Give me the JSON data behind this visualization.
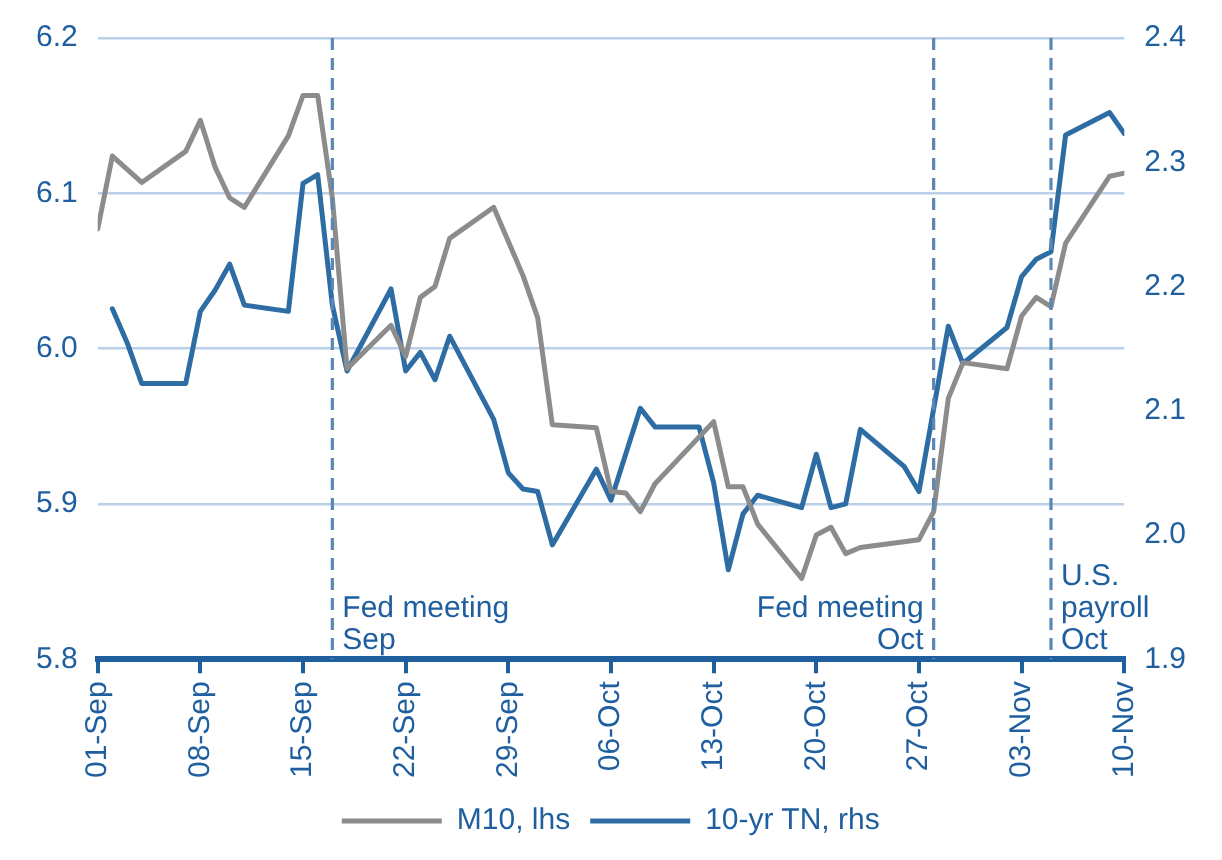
{
  "chart_data": {
    "type": "line",
    "xlim": [
      "--09-01",
      "--11-10"
    ],
    "xticks": [
      {
        "value": "--09-01",
        "label": "01-Sep"
      },
      {
        "value": "--09-08",
        "label": "08-Sep"
      },
      {
        "value": "--09-15",
        "label": "15-Sep"
      },
      {
        "value": "--09-22",
        "label": "22-Sep"
      },
      {
        "value": "--09-29",
        "label": "29-Sep"
      },
      {
        "value": "--10-06",
        "label": "06-Oct"
      },
      {
        "value": "--10-13",
        "label": "13-Oct"
      },
      {
        "value": "--10-20",
        "label": "20-Oct"
      },
      {
        "value": "--10-27",
        "label": "27-Oct"
      },
      {
        "value": "--11-03",
        "label": "03-Nov"
      },
      {
        "value": "--11-10",
        "label": "10-Nov"
      }
    ],
    "ylim": [
      5.8,
      6.2
    ],
    "yticks": [
      5.8,
      5.9,
      {
        "value": 6,
        "label": "6.0"
      },
      6.1,
      6.2
    ],
    "y2lim": [
      1.9,
      2.4
    ],
    "y2ticks": [
      1.9,
      {
        "value": 2,
        "label": "2.0"
      },
      2.1,
      2.2,
      2.3,
      2.4
    ],
    "series": [
      {
        "name": "M10, lhs",
        "color": "#8c8c8c",
        "x": [
          "--09-01",
          "--09-02",
          "--09-04",
          "--09-07",
          "--09-08",
          "--09-09",
          "--09-10",
          "--09-11",
          "--09-14",
          "--09-15",
          "--09-16",
          "--09-17",
          "--09-18",
          "--09-21",
          "--09-22",
          "--09-23",
          "--09-24",
          "--09-25",
          "--09-28",
          "--09-30",
          "--10-01",
          "--10-02",
          "--10-05",
          "--10-06",
          "--10-07",
          "--10-08",
          "--10-09",
          "--10-13",
          "--10-14",
          "--10-15",
          "--10-16",
          "--10-19",
          "--10-20",
          "--10-21",
          "--10-22",
          "--10-23",
          "--10-27",
          "--10-28",
          "--10-29",
          "--10-30",
          "--11-02",
          "--11-03",
          "--11-04",
          "--11-05",
          "--11-06",
          "--11-09",
          "--11-10"
        ],
        "values": [
          6.077,
          6.124,
          6.107,
          6.127,
          6.147,
          6.117,
          6.097,
          6.091,
          6.137,
          6.163,
          6.163,
          6.097,
          5.987,
          6.015,
          5.995,
          6.033,
          6.04,
          6.071,
          6.091,
          6.047,
          6.02,
          5.951,
          5.949,
          5.908,
          5.907,
          5.895,
          5.913,
          5.953,
          5.911,
          5.911,
          5.887,
          5.852,
          5.88,
          5.885,
          5.868,
          5.872,
          5.877,
          5.895,
          5.968,
          5.991,
          5.987,
          6.021,
          6.033,
          6.027,
          6.068,
          6.111,
          6.113
        ]
      },
      {
        "name": "10-yr TN, rhs",
        "color": "#2e6da4",
        "axis": "y2",
        "x": [
          "--09-02",
          "--09-03",
          "--09-04",
          "--09-07",
          "--09-08",
          "--09-09",
          "--09-10",
          "--09-11",
          "--09-14",
          "--09-15",
          "--09-16",
          "--09-17",
          "--09-18",
          "--09-21",
          "--09-22",
          "--09-23",
          "--09-24",
          "--09-25",
          "--09-28",
          "--09-29",
          "--09-30",
          "--10-01",
          "--10-02",
          "--10-05",
          "--10-06",
          "--10-08",
          "--10-09",
          "--10-12",
          "--10-13",
          "--10-14",
          "--10-15",
          "--10-16",
          "--10-19",
          "--10-20",
          "--10-21",
          "--10-22",
          "--10-23",
          "--10-26",
          "--10-27",
          "--10-29",
          "--10-30",
          "--11-02",
          "--11-03",
          "--11-04",
          "--11-05",
          "--11-06",
          "--11-09",
          "--11-10"
        ],
        "values": [
          2.182,
          2.155,
          2.122,
          2.122,
          2.18,
          2.197,
          2.218,
          2.185,
          2.18,
          2.283,
          2.29,
          2.185,
          2.132,
          2.198,
          2.132,
          2.147,
          2.125,
          2.16,
          2.093,
          2.05,
          2.037,
          2.035,
          1.992,
          2.053,
          2.028,
          2.102,
          2.087,
          2.087,
          2.042,
          1.972,
          2.017,
          2.032,
          2.022,
          2.065,
          2.022,
          2.025,
          2.085,
          2.055,
          2.035,
          2.168,
          2.138,
          2.167,
          2.208,
          2.222,
          2.228,
          2.322,
          2.34,
          2.323
        ]
      }
    ],
    "ref_lines": [
      {
        "axis": "x",
        "value": "--09-17",
        "label": "Fed meeting\nSep",
        "color": "#5b86b8",
        "line_style": "dashed"
      },
      {
        "axis": "x",
        "value": "--10-28",
        "label": "Fed meeting\nOct",
        "color": "#5b86b8",
        "line_style": "dashed"
      },
      {
        "axis": "x",
        "value": "--11-05",
        "label": "U.S.\npayroll\nOct",
        "color": "#5b86b8",
        "line_style": "dashed"
      }
    ],
    "grid": "y",
    "legend": "bottom",
    "marker": "none",
    "line_style": "solid"
  }
}
